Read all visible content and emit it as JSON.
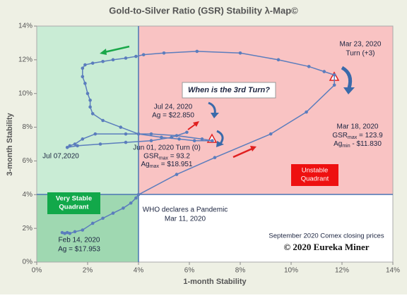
{
  "chart_data": {
    "type": "line",
    "title": "Gold-to-Silver Ratio (GSR) Stability λ-Map©",
    "xlabel": "1-month Stability",
    "ylabel": "3-month Stability",
    "xlim": [
      0,
      14
    ],
    "ylim": [
      0,
      14
    ],
    "xticks": [
      {
        "value": 0,
        "label": "0%"
      },
      {
        "value": 2,
        "label": "2%"
      },
      {
        "value": 4,
        "label": "4%"
      },
      {
        "value": 6,
        "label": "6%"
      },
      {
        "value": 8,
        "label": "8%"
      },
      {
        "value": 10,
        "label": "10%"
      },
      {
        "value": 12,
        "label": "12%"
      },
      {
        "value": 14,
        "label": "14%"
      }
    ],
    "yticks": [
      {
        "value": 0,
        "label": "0%"
      },
      {
        "value": 2,
        "label": "2%"
      },
      {
        "value": 4,
        "label": "4%"
      },
      {
        "value": 6,
        "label": "6%"
      },
      {
        "value": 8,
        "label": "8%"
      },
      {
        "value": 10,
        "label": "10%"
      },
      {
        "value": 12,
        "label": "12%"
      },
      {
        "value": 14,
        "label": "14%"
      }
    ],
    "series": [
      {
        "color": "#5b7dbd",
        "x": [
          1.0,
          1.1,
          1.2,
          1.3,
          1.5,
          1.8,
          2.2,
          2.6,
          3.0,
          3.4,
          3.7,
          3.9,
          4.0,
          5.5,
          7.0,
          9.2,
          10.6,
          11.7,
          11.7,
          11.3,
          10.7,
          9.5,
          8.0,
          6.3,
          5.0,
          4.2,
          3.9,
          3.5,
          3.0,
          2.6,
          2.2,
          1.9,
          1.8,
          1.8,
          1.9,
          2.0,
          2.1,
          2.1,
          2.2,
          2.6,
          3.3,
          4.0,
          4.9,
          5.6,
          6.2,
          6.9,
          6.5,
          5.5,
          4.5,
          3.5,
          2.3,
          1.8,
          1.5,
          1.3,
          1.2,
          1.6,
          2.5,
          3.5,
          4.5,
          5.3,
          5.9
        ],
        "y": [
          1.75,
          1.7,
          1.75,
          1.7,
          1.8,
          1.9,
          2.3,
          2.6,
          2.9,
          3.2,
          3.5,
          3.8,
          4.0,
          5.2,
          6.2,
          7.6,
          8.9,
          10.5,
          11.1,
          11.3,
          11.6,
          12.0,
          12.4,
          12.5,
          12.4,
          12.3,
          12.2,
          12.1,
          12.0,
          11.9,
          11.8,
          11.7,
          11.5,
          11.0,
          10.6,
          10.0,
          9.6,
          9.2,
          8.8,
          8.4,
          8.0,
          7.6,
          7.4,
          7.3,
          7.2,
          7.2,
          7.3,
          7.5,
          7.6,
          7.6,
          7.6,
          7.3,
          7.0,
          6.9,
          6.8,
          6.9,
          7.0,
          7.1,
          7.2,
          7.4,
          7.7
        ]
      }
    ],
    "annotations": [
      {
        "lines": [
          "Mar 23, 2020",
          "Turn (+3)"
        ]
      },
      {
        "lines": [
          "Mar 18, 2020",
          {
            "main": "GSR",
            "sub": "max",
            "tail": " = 123.9"
          },
          {
            "main": "Ag",
            "sub": "min",
            "tail": " - $11.830"
          }
        ]
      },
      {
        "lines": [
          "Jul 24, 2020",
          "Ag = $22.850"
        ]
      },
      {
        "lines": [
          "Jun 01, 2020 Turn (0)",
          {
            "main": "GSR",
            "sub": "max",
            "tail": " = 93.2"
          },
          {
            "main": "Ag",
            "sub": "max",
            "tail": " = $18.951"
          }
        ]
      },
      {
        "lines": [
          "Jul 07,2020"
        ]
      },
      {
        "lines": [
          "WHO declares a Pandemic",
          "Mar 11, 2020"
        ]
      },
      {
        "lines": [
          "Feb 14, 2020",
          "Ag = $17.953"
        ]
      },
      {
        "lines": [
          "When is the 3rd Turn?"
        ]
      },
      {
        "lines": [
          "Very Stable",
          "Quadrant"
        ]
      },
      {
        "lines": [
          "Unstable",
          "Quadrant"
        ]
      },
      {
        "lines": [
          "September 2020 Comex  closing prices"
        ]
      },
      {
        "lines": [
          "© 2020 Eureka Miner"
        ]
      }
    ]
  }
}
